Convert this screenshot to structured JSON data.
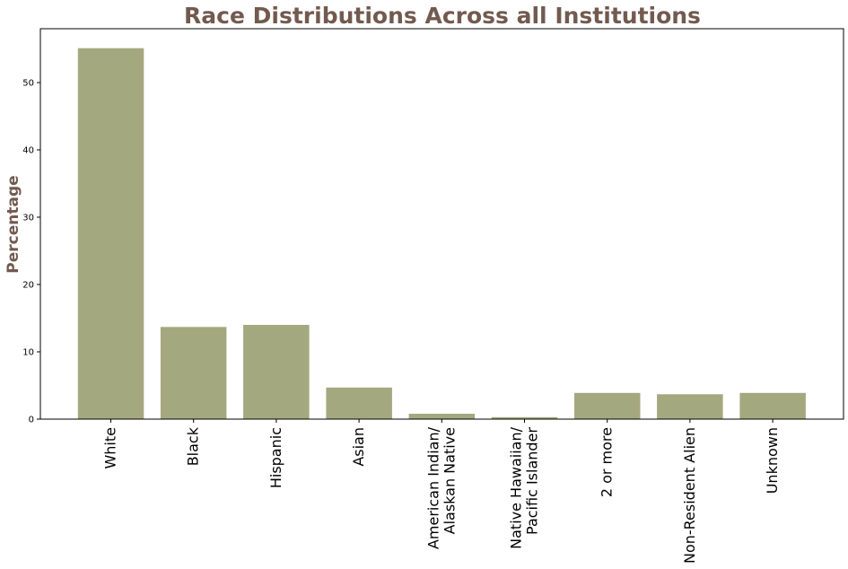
{
  "chart_data": {
    "type": "bar",
    "title": "Race Distributions Across all Institutions",
    "xlabel": "",
    "ylabel": "Percentage",
    "categories": [
      "White",
      "Black",
      "Hispanic",
      "Asian",
      "American Indian/\nAlaskan Native",
      "Native Hawaiian/\nPacific Islander",
      "2 or more",
      "Non-Resident Alien",
      "Unknown"
    ],
    "values": [
      55.1,
      13.7,
      14.0,
      4.7,
      0.8,
      0.3,
      3.9,
      3.7,
      3.9
    ],
    "ylim": [
      0,
      58
    ],
    "yticks": [
      0,
      10,
      20,
      30,
      40,
      50
    ],
    "grid": false,
    "colors": {
      "bar": "#a4a87e",
      "title": "#725a4f",
      "ylabel": "#725a4f",
      "axis": "#000000"
    }
  }
}
